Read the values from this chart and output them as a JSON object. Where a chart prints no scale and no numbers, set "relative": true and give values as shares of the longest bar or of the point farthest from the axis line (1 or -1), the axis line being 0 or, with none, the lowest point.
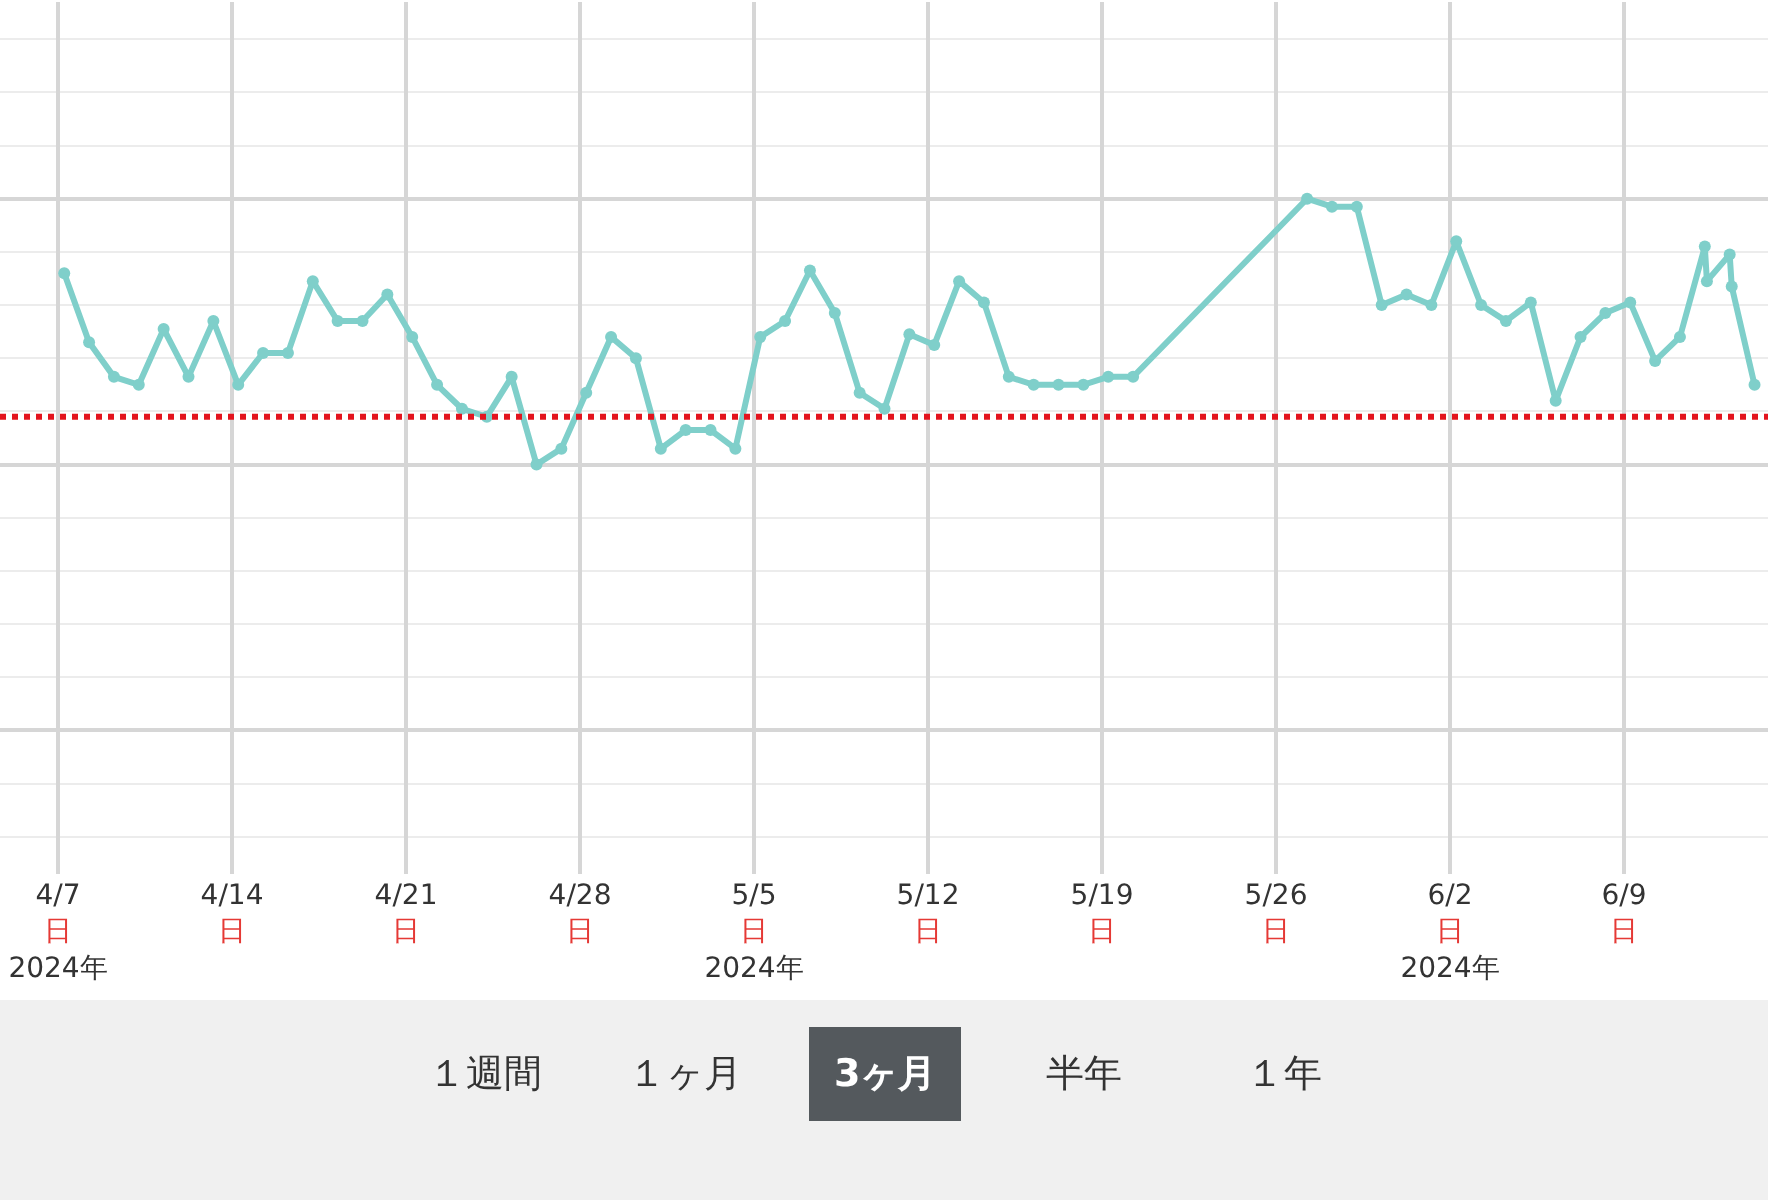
{
  "chart_data": {
    "type": "line",
    "relative": true,
    "grid": true,
    "marker": "circle",
    "line_style": "solid",
    "x": [
      "2024-04-07T06:00",
      "2024-04-08T06:00",
      "2024-04-09T06:00",
      "2024-04-10T06:00",
      "2024-04-11T06:00",
      "2024-04-12T06:00",
      "2024-04-13T06:00",
      "2024-04-14T06:00",
      "2024-04-15T06:00",
      "2024-04-16T06:00",
      "2024-04-17T06:00",
      "2024-04-18T06:00",
      "2024-04-19T06:00",
      "2024-04-20T06:00",
      "2024-04-21T06:00",
      "2024-04-22T06:00",
      "2024-04-23T06:00",
      "2024-04-24T06:00",
      "2024-04-25T06:00",
      "2024-04-26T06:00",
      "2024-04-27T06:00",
      "2024-04-28T06:00",
      "2024-04-29T06:00",
      "2024-04-30T06:00",
      "2024-05-01T06:00",
      "2024-05-02T06:00",
      "2024-05-03T06:00",
      "2024-05-04T06:00",
      "2024-05-05T06:00",
      "2024-05-06T06:00",
      "2024-05-07T06:00",
      "2024-05-08T06:00",
      "2024-05-09T06:00",
      "2024-05-10T06:00",
      "2024-05-11T06:00",
      "2024-05-12T06:00",
      "2024-05-13T06:00",
      "2024-05-14T06:00",
      "2024-05-15T06:00",
      "2024-05-16T06:00",
      "2024-05-17T06:00",
      "2024-05-18T06:00",
      "2024-05-19T06:00",
      "2024-05-20T06:00",
      "2024-05-27T06:00",
      "2024-05-28T06:00",
      "2024-05-29T06:00",
      "2024-05-30T06:00",
      "2024-05-31T06:00",
      "2024-06-01T06:00",
      "2024-06-02T06:00",
      "2024-06-03T06:00",
      "2024-06-04T06:00",
      "2024-06-05T06:00",
      "2024-06-06T06:00",
      "2024-06-07T06:00",
      "2024-06-08T06:00",
      "2024-06-09T06:00",
      "2024-06-10T06:00",
      "2024-06-11T06:00",
      "2024-06-12T06:00",
      "2024-06-12T08:00",
      "2024-06-13T06:00",
      "2024-06-13T08:00",
      "2024-06-14T06:00"
    ],
    "series": [
      {
        "color": "#7fcfca",
        "values": [
          0.72,
          0.46,
          0.33,
          0.3,
          0.51,
          0.33,
          0.54,
          0.3,
          0.42,
          0.42,
          0.69,
          0.54,
          0.54,
          0.64,
          0.48,
          0.3,
          0.21,
          0.18,
          0.33,
          0,
          0.06,
          0.27,
          0.48,
          0.4,
          0.06,
          0.13,
          0.13,
          0.06,
          0.48,
          0.54,
          0.73,
          0.57,
          0.27,
          0.21,
          0.49,
          0.45,
          0.69,
          0.61,
          0.33,
          0.3,
          0.3,
          0.3,
          0.33,
          0.33,
          1,
          0.97,
          0.97,
          0.6,
          0.64,
          0.6,
          0.84,
          0.6,
          0.54,
          0.61,
          0.24,
          0.48,
          0.57,
          0.61,
          0.39,
          0.48,
          0.82,
          0.69,
          0.79,
          0.67,
          0.3
        ]
      }
    ],
    "xlim": [
      "2024-04-04T16:00",
      "2024-06-14T19:00"
    ],
    "xticks": [
      {
        "value": "2024-04-07",
        "label": "4/7\n日\n2024年"
      },
      {
        "value": "2024-04-14",
        "label": "4/14\n日"
      },
      {
        "value": "2024-04-21",
        "label": "4/21\n日"
      },
      {
        "value": "2024-04-28",
        "label": "4/28\n日"
      },
      {
        "value": "2024-05-05",
        "label": "5/5\n日\n2024年"
      },
      {
        "value": "2024-05-12",
        "label": "5/12\n日"
      },
      {
        "value": "2024-05-19",
        "label": "5/19\n日"
      },
      {
        "value": "2024-05-26",
        "label": "5/26\n日"
      },
      {
        "value": "2024-06-02",
        "label": "6/2\n日\n2024年"
      },
      {
        "value": "2024-06-09",
        "label": "6/9\n日"
      }
    ],
    "ref_lines": [
      {
        "axis": "y",
        "value": 0.18,
        "color": "#e3141e",
        "line_style": "dotted"
      }
    ],
    "annotations": [
      "１週間",
      "１ヶ月",
      "3ヶ月",
      "半年",
      "１年"
    ]
  }
}
